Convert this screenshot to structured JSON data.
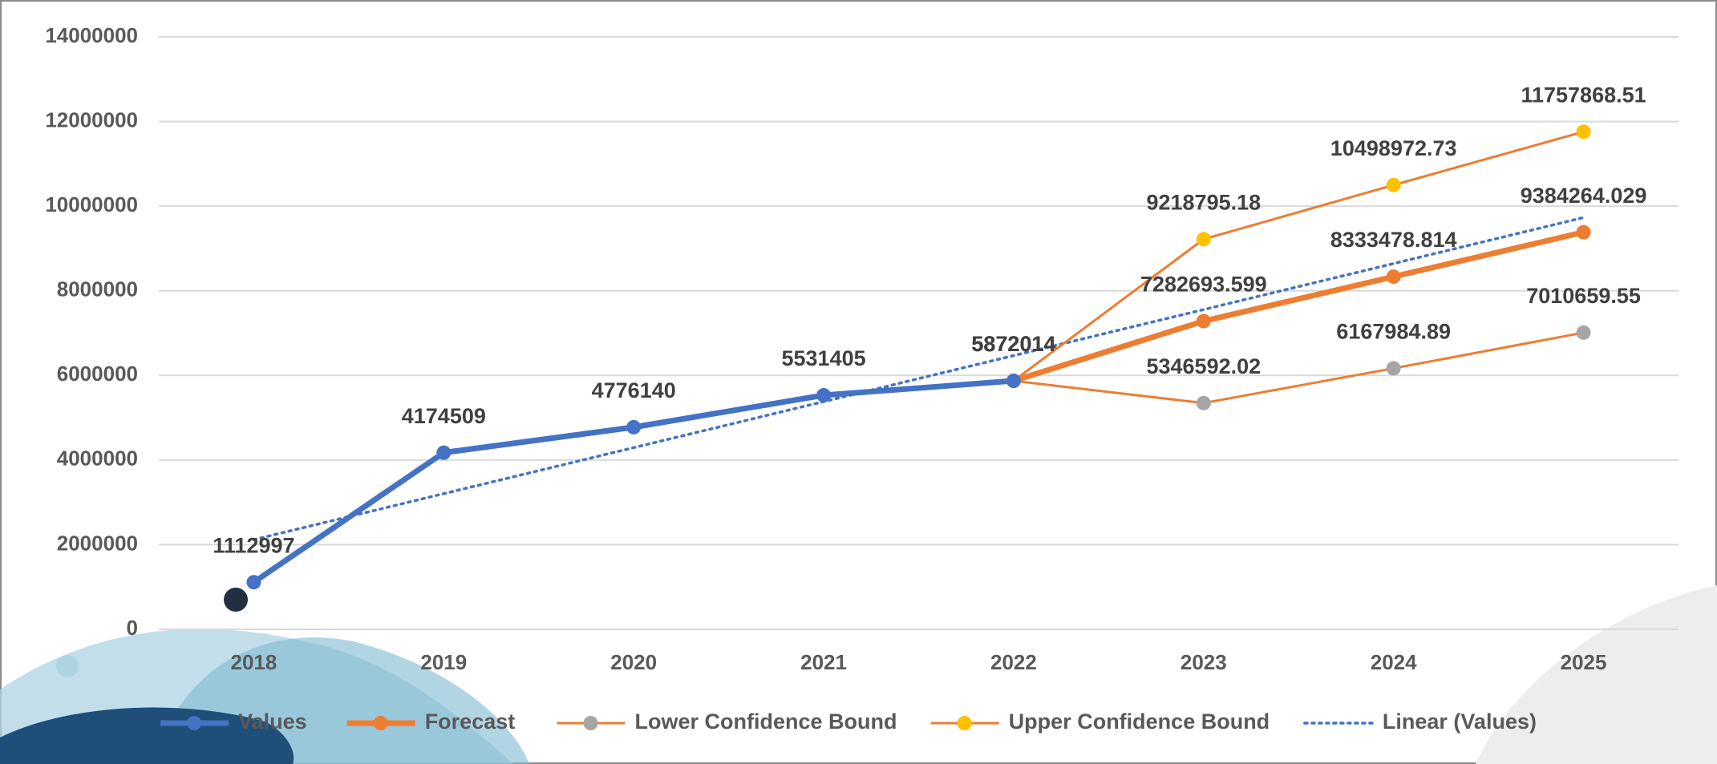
{
  "chart_data": {
    "type": "line",
    "categories": [
      "2018",
      "2019",
      "2020",
      "2021",
      "2022",
      "2023",
      "2024",
      "2025"
    ],
    "series": [
      {
        "name": "Values",
        "color": "#4472c4",
        "marker_color": "#4472c4",
        "line_style": "thick",
        "markers": true,
        "show_labels": true,
        "values": [
          1112997,
          4174509,
          4776140,
          5531405,
          5872014,
          null,
          null,
          null
        ]
      },
      {
        "name": "Forecast",
        "color": "#ed7d31",
        "marker_color": "#ed7d31",
        "line_style": "thick",
        "markers": true,
        "show_labels": true,
        "values": [
          null,
          null,
          null,
          null,
          5872014,
          7282693.599,
          8333478.814,
          9384264.029
        ]
      },
      {
        "name": "Lower Confidence Bound",
        "color": "#ed7d31",
        "marker_color": "#a5a5a5",
        "line_style": "thin",
        "markers": true,
        "show_labels": true,
        "values": [
          null,
          null,
          null,
          null,
          5872014,
          5346592.02,
          6167984.89,
          7010659.55
        ]
      },
      {
        "name": "Upper Confidence Bound",
        "color": "#ed7d31",
        "marker_color": "#ffc000",
        "line_style": "thin",
        "markers": true,
        "show_labels": true,
        "values": [
          null,
          null,
          null,
          null,
          5872014,
          9218795.18,
          10498972.73,
          11757868.51
        ]
      },
      {
        "name": "Linear (Values)",
        "color": "#4472c4",
        "marker_color": "#4472c4",
        "line_style": "dotted",
        "markers": false,
        "show_labels": false,
        "values": [
          2118427,
          3205920,
          4293413,
          5380906,
          6468399,
          7555892,
          8643385,
          9730878
        ]
      }
    ],
    "ylim": [
      0,
      14000000
    ],
    "yticks": [
      0,
      2000000,
      4000000,
      6000000,
      8000000,
      10000000,
      12000000,
      14000000
    ],
    "grid": true,
    "legend": "bottom"
  }
}
